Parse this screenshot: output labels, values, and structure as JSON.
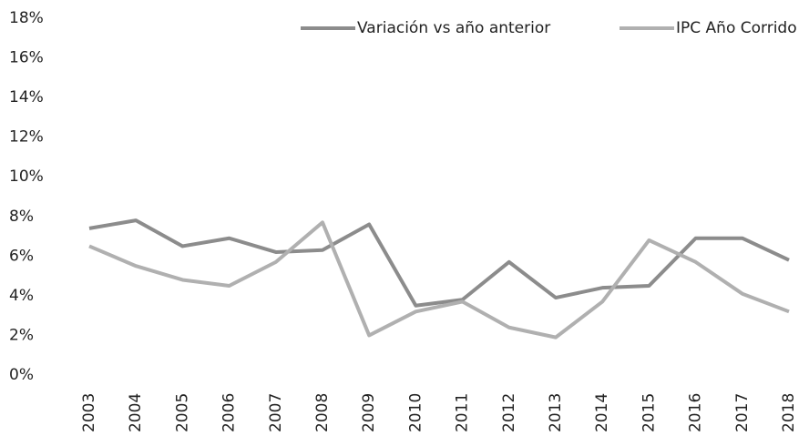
{
  "chart_data": {
    "type": "line",
    "categories": [
      "2003",
      "2004",
      "2005",
      "2006",
      "2007",
      "2008",
      "2009",
      "2010",
      "2011",
      "2012",
      "2013",
      "2014",
      "2015",
      "2016",
      "2017",
      "2018"
    ],
    "series": [
      {
        "name": "Variación vs año anterior",
        "color": "#8c8c8c",
        "values": [
          7.4,
          7.8,
          6.5,
          6.9,
          6.2,
          6.3,
          7.6,
          3.5,
          3.8,
          5.7,
          3.9,
          4.4,
          4.5,
          6.9,
          6.9,
          5.8
        ]
      },
      {
        "name": "IPC Año Corrido",
        "color": "#b0b0b0",
        "values": [
          6.5,
          5.5,
          4.8,
          4.5,
          5.7,
          7.7,
          2.0,
          3.2,
          3.7,
          2.4,
          1.9,
          3.7,
          6.8,
          5.7,
          4.1,
          3.2
        ]
      }
    ],
    "ylim": [
      0,
      18
    ],
    "yticks": [
      {
        "value": 0,
        "label": "0%"
      },
      {
        "value": 2,
        "label": "2%"
      },
      {
        "value": 4,
        "label": "4%"
      },
      {
        "value": 6,
        "label": "6%"
      },
      {
        "value": 8,
        "label": "8%"
      },
      {
        "value": 10,
        "label": "10%"
      },
      {
        "value": 12,
        "label": "12%"
      },
      {
        "value": 14,
        "label": "14%"
      },
      {
        "value": 16,
        "label": "16%"
      },
      {
        "value": 18,
        "label": "18%"
      }
    ],
    "grid": false,
    "legend": "top"
  }
}
